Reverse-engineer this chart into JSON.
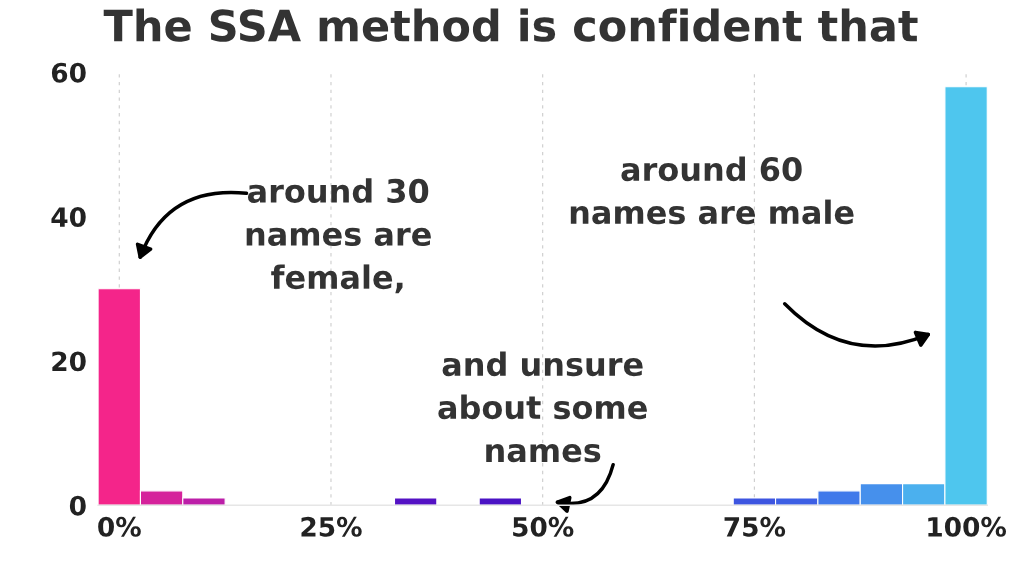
{
  "chart_data": {
    "type": "histogram",
    "title": "The SSA method is confident that",
    "bins": [
      -2.5,
      2.5,
      7.5,
      12.5,
      17.5,
      22.5,
      27.5,
      32.5,
      37.5,
      42.5,
      47.5,
      52.5,
      57.5,
      62.5,
      67.5,
      72.5,
      77.5,
      82.5,
      87.5,
      92.5,
      97.5,
      102.5
    ],
    "values": [
      30,
      2,
      1,
      0,
      0,
      0,
      0,
      1,
      0,
      1,
      0,
      0,
      0,
      0,
      0,
      1,
      1,
      2,
      3,
      3,
      58
    ],
    "colors": [
      "#f4258a",
      "#d5229b",
      "#bc1fa8",
      null,
      null,
      null,
      null,
      "#5412c4",
      null,
      "#4a13c4",
      null,
      null,
      null,
      null,
      null,
      "#3d55e0",
      "#3d5fe4",
      "#4079ea",
      "#4690ec",
      "#4bb0ee",
      "#4ec6ee"
    ],
    "xlim": [
      -2.5,
      102.5
    ],
    "ylim": [
      0,
      60
    ],
    "xticks": [
      {
        "value": 0,
        "label": "0%"
      },
      {
        "value": 25,
        "label": "25%"
      },
      {
        "value": 50,
        "label": "50%"
      },
      {
        "value": 75,
        "label": "75%"
      },
      {
        "value": 100,
        "label": "100%"
      }
    ],
    "yticks": [
      0,
      20,
      40,
      60
    ],
    "grid": "x",
    "annotations": [
      "around 30\nnames are\nfemale,",
      "around 60\nnames are male",
      "and unsure\nabout some\nnames"
    ]
  }
}
